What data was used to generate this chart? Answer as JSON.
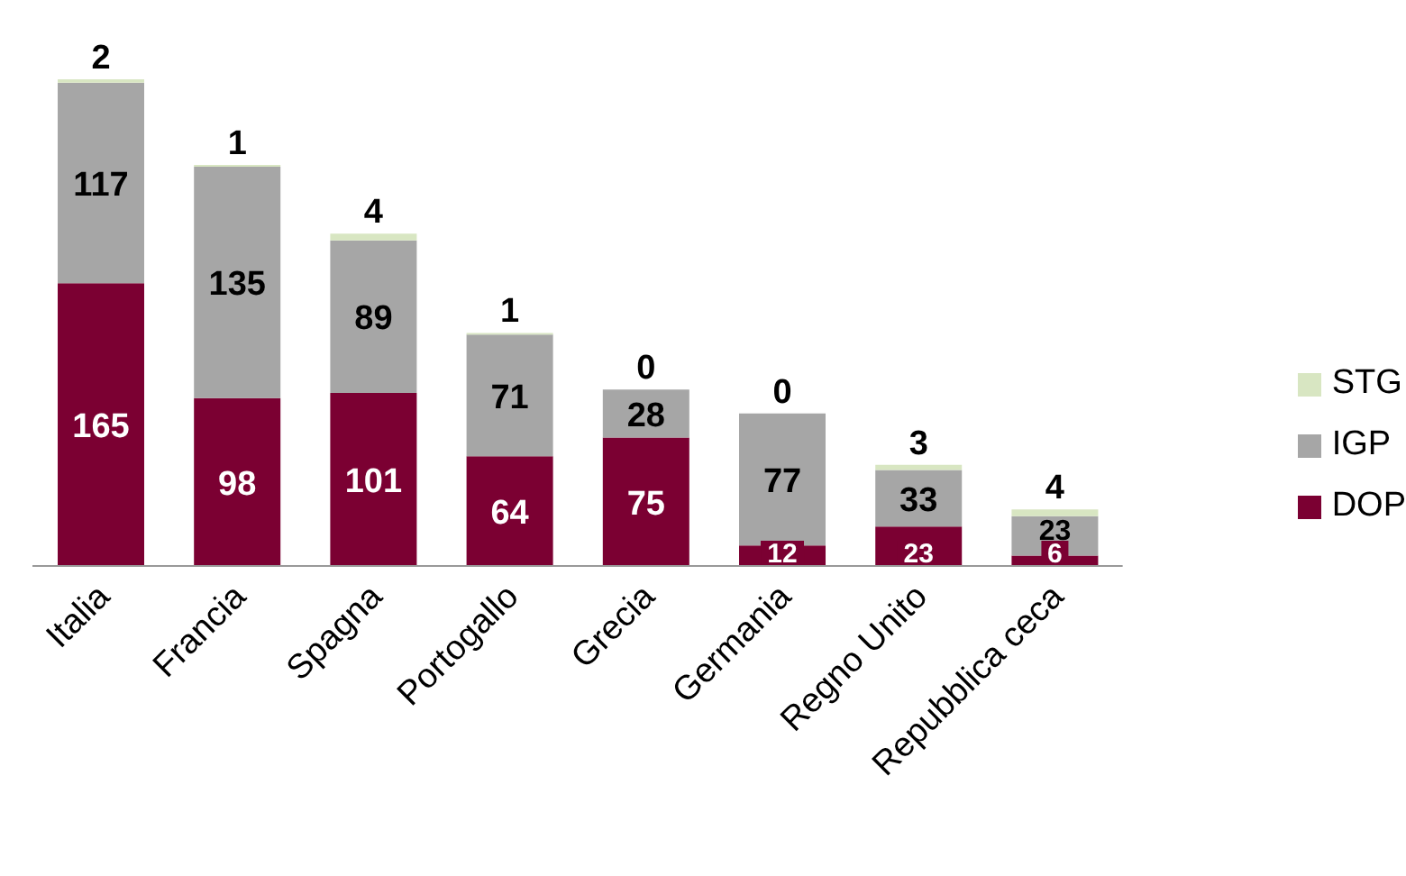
{
  "chart_data": {
    "type": "bar",
    "stacked": true,
    "categories": [
      "Italia",
      "Francia",
      "Spagna",
      "Portogallo",
      "Grecia",
      "Germania",
      "Regno Unito",
      "Repubblica ceca"
    ],
    "series": [
      {
        "name": "DOP",
        "color": "#7b0032",
        "values": [
          165,
          98,
          101,
          64,
          75,
          12,
          23,
          6
        ]
      },
      {
        "name": "IGP",
        "color": "#a6a6a6",
        "values": [
          117,
          135,
          89,
          71,
          28,
          77,
          33,
          23
        ]
      },
      {
        "name": "STG",
        "color": "#d8e6c2",
        "values": [
          2,
          1,
          4,
          1,
          0,
          0,
          3,
          4
        ]
      }
    ],
    "tick_labels": "x",
    "data_labels": true,
    "legend": "right",
    "grid": false
  }
}
